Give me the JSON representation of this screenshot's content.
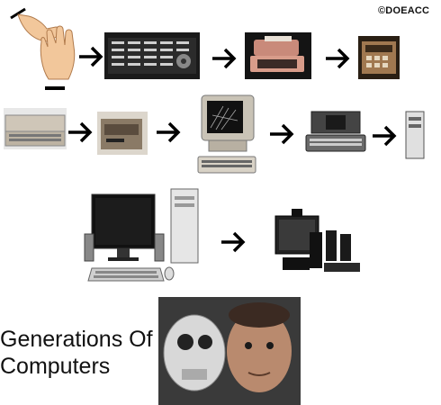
{
  "copyright": "©DOEACC",
  "title": {
    "line1": "Generations Of",
    "line2": "Computers"
  },
  "arrow_color": "#000000",
  "stages": [
    {
      "row": 1,
      "items": [
        "counting-hands-icon",
        "early-mainframe-panel",
        "teletype-terminal",
        "calculator-device"
      ]
    },
    {
      "row": 2,
      "items": [
        "desktop-home-computer",
        "disk-unit",
        "crt-workstation",
        "portable-computer",
        "tower-server"
      ]
    },
    {
      "row": 3,
      "items": [
        "modern-desktop-pc",
        "home-theater-multimedia-system"
      ]
    },
    {
      "row": 4,
      "items": [
        "robot-human-face-photo"
      ]
    }
  ]
}
